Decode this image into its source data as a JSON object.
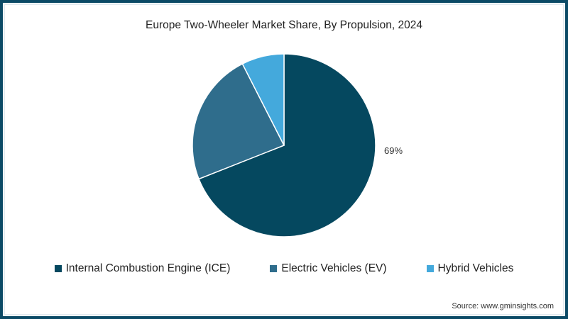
{
  "chart_data": {
    "type": "pie",
    "title": "Europe Two-Wheeler Market Share, By Propulsion, 2024",
    "categories": [
      "Internal Combustion Engine (ICE)",
      "Electric Vehicles (EV)",
      "Hybrid Vehicles"
    ],
    "values": [
      69,
      23.5,
      7.5
    ],
    "colors": [
      "#05485f",
      "#2f6d8c",
      "#44a9dc"
    ],
    "data_labels": [
      "69%",
      "",
      ""
    ],
    "legend_position": "bottom",
    "start_angle": "12 o'clock, clockwise"
  },
  "title": "Europe Two-Wheeler Market Share, By Propulsion, 2024",
  "data_label_ice": "69%",
  "legend": [
    {
      "label": "Internal Combustion Engine (ICE)",
      "color": "#05485f"
    },
    {
      "label": "Electric Vehicles (EV)",
      "color": "#2f6d8c"
    },
    {
      "label": "Hybrid Vehicles",
      "color": "#44a9dc"
    }
  ],
  "source": "Source: www.gminsights.com",
  "colors": {
    "border": "#0b4a66"
  }
}
